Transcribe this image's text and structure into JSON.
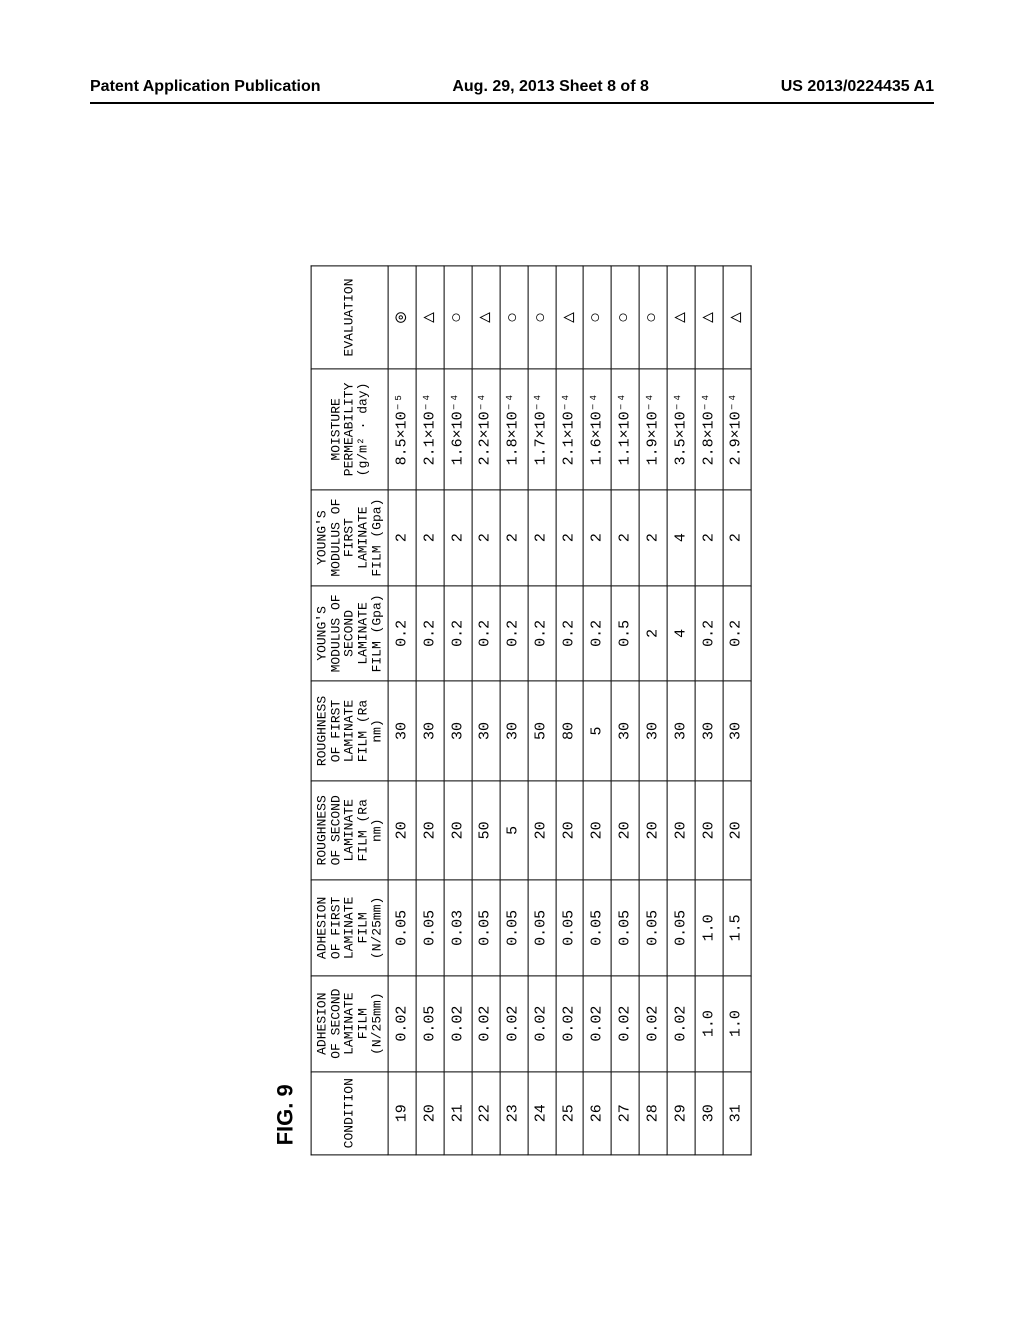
{
  "header": {
    "left": "Patent Application Publication",
    "center": "Aug. 29, 2013  Sheet 8 of 8",
    "right": "US 2013/0224435 A1"
  },
  "figure": {
    "label": "FIG. 9",
    "columns": [
      "CONDITION",
      "ADHESION OF SECOND LAMINATE FILM (N/25mm)",
      "ADHESION OF FIRST LAMINATE FILM (N/25mm)",
      "ROUGHNESS OF SECOND LAMINATE FILM (Ra nm)",
      "ROUGHNESS OF FIRST LAMINATE FILM (Ra nm)",
      "YOUNG'S MODULUS OF SECOND LAMINATE FILM (Gpa)",
      "YOUNG'S MODULUS OF FIRST LAMINATE FILM (Gpa)",
      "MOISTURE PERMEABILITY (g/m² · day)",
      "EVALUATION"
    ],
    "rows": [
      [
        "19",
        "0.02",
        "0.05",
        "20",
        "30",
        "0.2",
        "2",
        "8.5×10⁻⁵",
        "◎"
      ],
      [
        "20",
        "0.05",
        "0.05",
        "20",
        "30",
        "0.2",
        "2",
        "2.1×10⁻⁴",
        "△"
      ],
      [
        "21",
        "0.02",
        "0.03",
        "20",
        "30",
        "0.2",
        "2",
        "1.6×10⁻⁴",
        "○"
      ],
      [
        "22",
        "0.02",
        "0.05",
        "50",
        "30",
        "0.2",
        "2",
        "2.2×10⁻⁴",
        "△"
      ],
      [
        "23",
        "0.02",
        "0.05",
        "5",
        "30",
        "0.2",
        "2",
        "1.8×10⁻⁴",
        "○"
      ],
      [
        "24",
        "0.02",
        "0.05",
        "20",
        "50",
        "0.2",
        "2",
        "1.7×10⁻⁴",
        "○"
      ],
      [
        "25",
        "0.02",
        "0.05",
        "20",
        "80",
        "0.2",
        "2",
        "2.1×10⁻⁴",
        "△"
      ],
      [
        "26",
        "0.02",
        "0.05",
        "20",
        "5",
        "0.2",
        "2",
        "1.6×10⁻⁴",
        "○"
      ],
      [
        "27",
        "0.02",
        "0.05",
        "20",
        "30",
        "0.5",
        "2",
        "1.1×10⁻⁴",
        "○"
      ],
      [
        "28",
        "0.02",
        "0.05",
        "20",
        "30",
        "2",
        "2",
        "1.9×10⁻⁴",
        "○"
      ],
      [
        "29",
        "0.02",
        "0.05",
        "20",
        "30",
        "4",
        "4",
        "3.5×10⁻⁴",
        "△"
      ],
      [
        "30",
        "1.0",
        "1.0",
        "20",
        "30",
        "0.2",
        "2",
        "2.8×10⁻⁴",
        "△"
      ],
      [
        "31",
        "1.0",
        "1.5",
        "20",
        "30",
        "0.2",
        "2",
        "2.9×10⁻⁴",
        "△"
      ]
    ]
  },
  "style": {
    "page_bg": "#ffffff",
    "border_color": "#000000",
    "header_fontsize": 16,
    "fig_label_fontsize": 22,
    "table_font": "Courier New",
    "table_fontsize": 15,
    "th_fontsize": 13,
    "eval_fontsize": 18
  }
}
